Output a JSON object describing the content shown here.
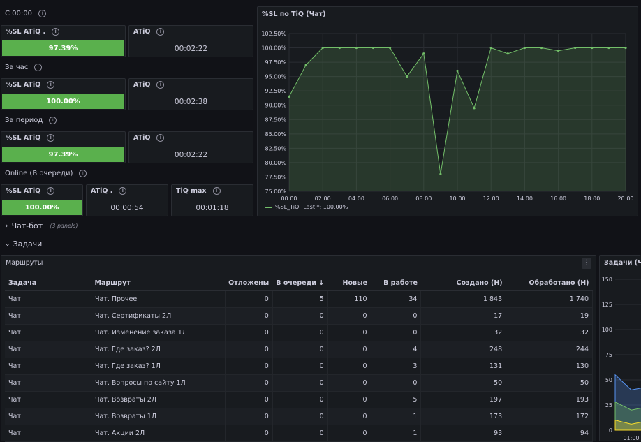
{
  "sections": {
    "s1": "С 00:00",
    "s2": "За час",
    "s3": "За период",
    "s4": "Online (В очереди)"
  },
  "stats": {
    "r1": {
      "sl_label": "%SL ATiQ .",
      "sl_value": "97.39%",
      "sl_fill": 0.9739,
      "atiq_label": "ATiQ",
      "atiq_value": "00:02:22"
    },
    "r2": {
      "sl_label": "%SL ATiQ",
      "sl_value": "100.00%",
      "sl_fill": 1.0,
      "atiq_label": "ATiQ",
      "atiq_value": "00:02:38"
    },
    "r3": {
      "sl_label": "%SL ATiQ",
      "sl_value": "97.39%",
      "sl_fill": 0.9739,
      "atiq_label": "ATiQ",
      "atiq_value": "00:02:22"
    },
    "r4": {
      "sl_label": "%SL ATiQ",
      "sl_value": "100.00%",
      "sl_fill": 1.0,
      "atiq_label": "ATiQ .",
      "atiq_value": "00:00:54",
      "tiq_label": "TiQ max",
      "tiq_value": "00:01:18"
    }
  },
  "chart": {
    "title": "%SL по TiQ (Чат)",
    "legend": "%SL_TiQ",
    "legend_last": "Last *: 100.00%"
  },
  "chart_data": {
    "type": "line",
    "title": "%SL по TiQ (Чат)",
    "y_ticks": [
      "102.50%",
      "100.00%",
      "97.50%",
      "95.00%",
      "92.50%",
      "90.00%",
      "87.50%",
      "85.00%",
      "82.50%",
      "80.00%",
      "77.50%",
      "75.00%"
    ],
    "x_ticks": [
      "00:00",
      "02:00",
      "04:00",
      "06:00",
      "08:00",
      "10:00",
      "12:00",
      "14:00",
      "16:00",
      "18:00",
      "20:00"
    ],
    "ylim": [
      75,
      102.5
    ],
    "xlim": [
      0,
      20
    ],
    "color": "#73bf69",
    "series": [
      {
        "name": "%SL_TiQ",
        "x": [
          0,
          1,
          2,
          3,
          4,
          5,
          6,
          7,
          8,
          9,
          10,
          11,
          12,
          13,
          14,
          15,
          16,
          17,
          18,
          19,
          20
        ],
        "values": [
          91.5,
          97.0,
          100.0,
          100.0,
          100.0,
          100.0,
          100.0,
          95.0,
          99.0,
          78.0,
          96.0,
          89.5,
          100.0,
          99.0,
          100.0,
          100.0,
          99.5,
          100.0,
          100.0,
          100.0,
          100.0
        ]
      }
    ]
  },
  "groups": {
    "chatbot": "Чат-бот",
    "chatbot_note": "(3 panels)",
    "tasks": "Задачи"
  },
  "routes_panel": {
    "title": "Маршруты",
    "columns": [
      "Задача",
      "Маршрут",
      "Отложены",
      "В очереди",
      "Новые",
      "В работе",
      "Создано (Н)",
      "Обработано (Н)"
    ],
    "rows": [
      [
        "Чат",
        "Чат. Прочее",
        "0",
        "5",
        "110",
        "34",
        "1 843",
        "1 740"
      ],
      [
        "Чат",
        "Чат. Сертификаты 2Л",
        "0",
        "0",
        "0",
        "0",
        "17",
        "19"
      ],
      [
        "Чат",
        "Чат. Изменение заказа 1Л",
        "0",
        "0",
        "0",
        "0",
        "32",
        "32"
      ],
      [
        "Чат",
        "Чат. Где заказ? 2Л",
        "0",
        "0",
        "0",
        "4",
        "248",
        "244"
      ],
      [
        "Чат",
        "Чат. Где заказ? 1Л",
        "0",
        "0",
        "0",
        "3",
        "131",
        "130"
      ],
      [
        "Чат",
        "Чат. Вопросы по сайту 1Л",
        "0",
        "0",
        "0",
        "0",
        "50",
        "50"
      ],
      [
        "Чат",
        "Чат. Возвраты 2Л",
        "0",
        "0",
        "0",
        "5",
        "197",
        "193"
      ],
      [
        "Чат",
        "Чат. Возвраты 1Л",
        "0",
        "0",
        "0",
        "1",
        "173",
        "172"
      ],
      [
        "Чат",
        "Чат. Акции 2Л",
        "0",
        "0",
        "0",
        "1",
        "93",
        "94"
      ]
    ]
  },
  "tasks_panel": {
    "title": "Задачи (Ча",
    "y_ticks": [
      "150",
      "125",
      "100",
      "75",
      "50",
      "25",
      "0"
    ],
    "x_tick": "01:00"
  }
}
